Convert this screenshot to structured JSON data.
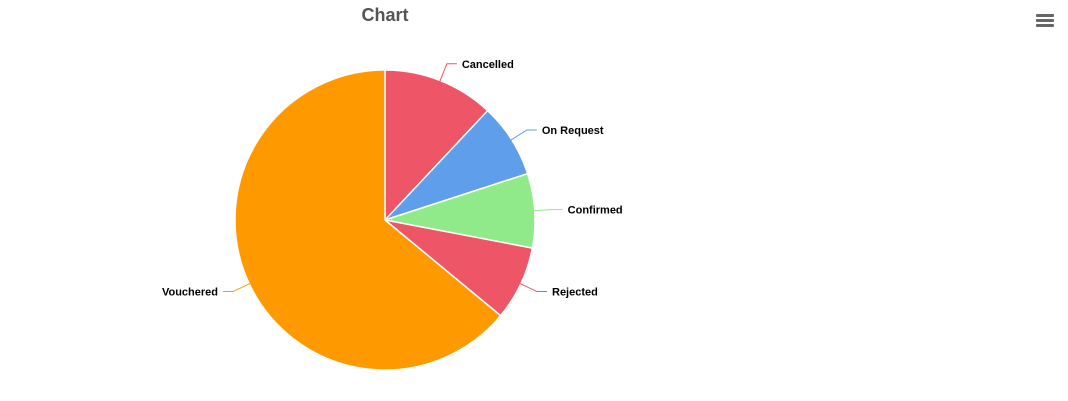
{
  "chart_data": {
    "type": "pie",
    "title": "Chart",
    "slices": [
      {
        "label": "Cancelled",
        "value": 12,
        "color": "#EE5566"
      },
      {
        "label": "On Request",
        "value": 8,
        "color": "#5F9EEA"
      },
      {
        "label": "Confirmed",
        "value": 8,
        "color": "#90EA8A"
      },
      {
        "label": "Rejected",
        "value": 8,
        "color": "#EE5566"
      },
      {
        "label": "Vouchered",
        "value": 64,
        "color": "#FF9900"
      }
    ]
  },
  "toolbar": {
    "menu_icon": "hamburger-menu-icon"
  }
}
